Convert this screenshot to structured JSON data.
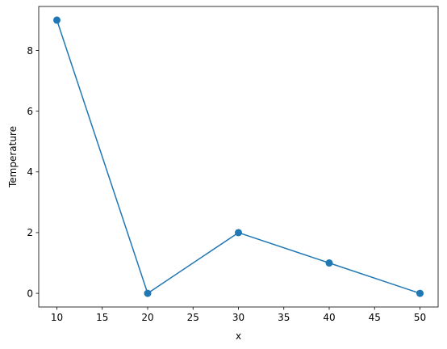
{
  "chart_data": {
    "type": "line",
    "title": "",
    "xlabel": "x",
    "ylabel": "Temperature",
    "x": [
      10,
      20,
      30,
      40,
      50
    ],
    "series": [
      {
        "values": [
          9,
          0,
          2,
          1,
          0
        ],
        "color": "#1f77b4",
        "marker": "circle"
      }
    ],
    "xlim": [
      8,
      52
    ],
    "ylim": [
      -0.45,
      9.45
    ],
    "xticks": [
      10,
      15,
      20,
      25,
      30,
      35,
      40,
      45,
      50
    ],
    "yticks": [
      0,
      2,
      4,
      6,
      8
    ],
    "grid": false,
    "legend": "none"
  }
}
